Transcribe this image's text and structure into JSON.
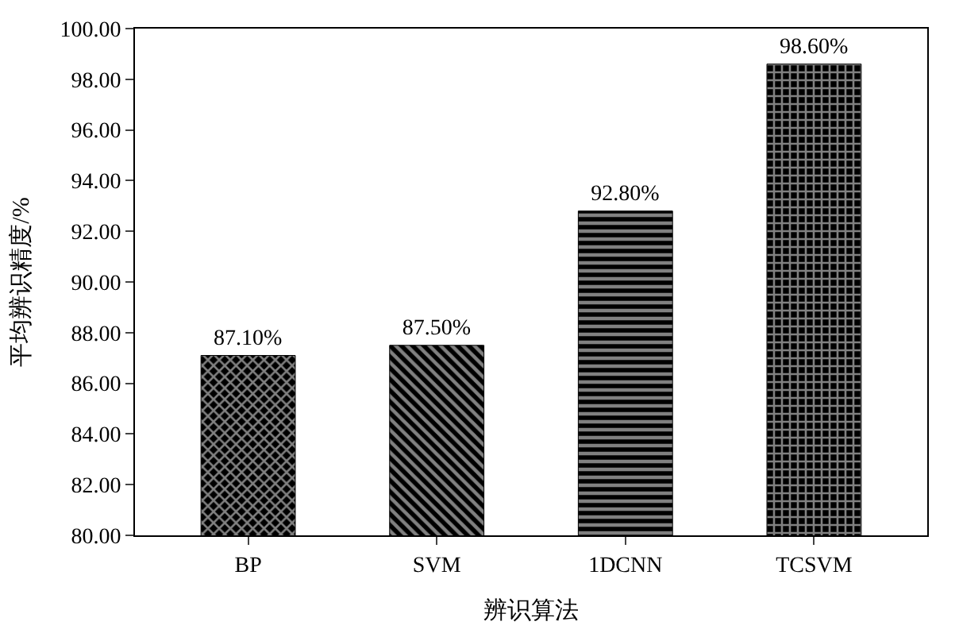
{
  "chart_data": {
    "type": "bar",
    "xlabel": "辨识算法",
    "ylabel": "平均辨识精度/%",
    "categories": [
      "BP",
      "SVM",
      "1DCNN",
      "TCSVM"
    ],
    "values": [
      87.1,
      87.5,
      92.8,
      98.6
    ],
    "value_labels": [
      "87.10%",
      "87.50%",
      "92.80%",
      "98.60%"
    ],
    "colors": [
      "#000000",
      "#000000",
      "#000000",
      "#000000"
    ],
    "ylim": [
      80,
      100
    ],
    "yticks": [
      {
        "value": 80,
        "label": "80.00"
      },
      {
        "value": 82,
        "label": "82.00"
      },
      {
        "value": 84,
        "label": "84.00"
      },
      {
        "value": 86,
        "label": "86.00"
      },
      {
        "value": 88,
        "label": "88.00"
      },
      {
        "value": 90,
        "label": "90.00"
      },
      {
        "value": 92,
        "label": "92.00"
      },
      {
        "value": 94,
        "label": "94.00"
      },
      {
        "value": 96,
        "label": "96.00"
      },
      {
        "value": 98,
        "label": "98.00"
      },
      {
        "value": 100,
        "label": "100.00"
      }
    ],
    "legend": false
  }
}
